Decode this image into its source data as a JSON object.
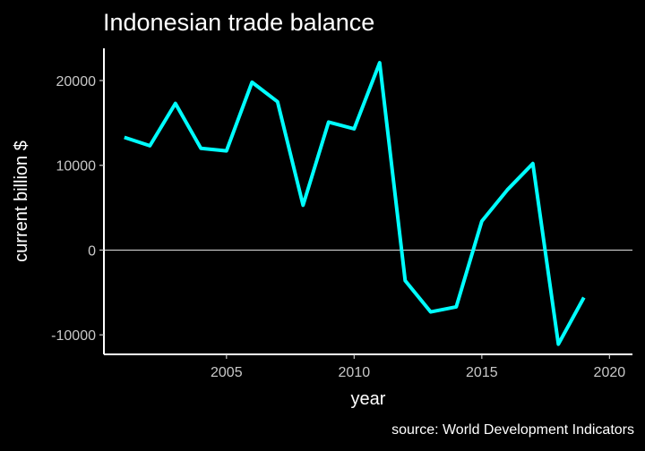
{
  "chart_data": {
    "type": "line",
    "title": "Indonesian trade balance",
    "caption": "source: World Development Indicators",
    "xlabel": "year",
    "ylabel": "current billion $",
    "xlim": [
      2000.2,
      2020.9
    ],
    "ylim": [
      -12300,
      23800
    ],
    "x_ticks": [
      2005,
      2010,
      2015,
      2020
    ],
    "y_ticks": [
      -10000,
      0,
      10000,
      20000
    ],
    "reference_line": 0,
    "grid": false,
    "series": [
      {
        "color": "#00ffff",
        "x": [
          2001,
          2002,
          2003,
          2004,
          2005,
          2006,
          2007,
          2008,
          2009,
          2010,
          2011,
          2012,
          2013,
          2014,
          2015,
          2016,
          2017,
          2018,
          2019
        ],
        "y": [
          13300,
          12300,
          17300,
          12000,
          11700,
          19800,
          17500,
          5300,
          15100,
          14300,
          22100,
          -3600,
          -7300,
          -6700,
          3400,
          7100,
          10200,
          -11100,
          -5600
        ]
      }
    ]
  }
}
